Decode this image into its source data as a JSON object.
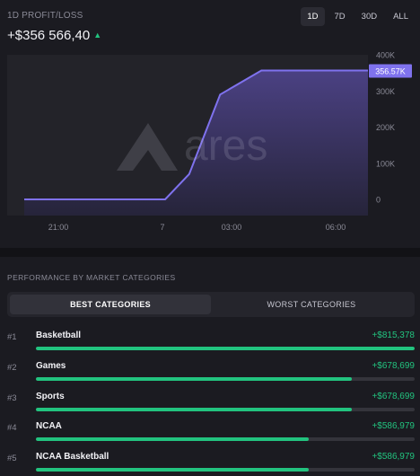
{
  "pnl": {
    "label": "1D PROFIT/LOSS",
    "value": "+$356 566,40",
    "trend_icon": "triangle-up-icon",
    "trend_glyph": "▲"
  },
  "range_tabs": [
    {
      "label": "1D",
      "active": true
    },
    {
      "label": "7D",
      "active": false
    },
    {
      "label": "30D",
      "active": false
    },
    {
      "label": "ALL",
      "active": false
    }
  ],
  "watermark": {
    "text": "ares"
  },
  "chart_data": {
    "type": "area",
    "x_ticks": [
      "21:00",
      "7",
      "03:00",
      "06:00"
    ],
    "y_ticks": [
      "0",
      "100K",
      "200K",
      "300K",
      "400K"
    ],
    "ylim": [
      0,
      400000
    ],
    "current_value_label": "356.57K",
    "x": [
      0,
      0.32,
      0.41,
      0.48,
      0.57,
      0.69,
      1.0
    ],
    "values": [
      0,
      0,
      0,
      70000,
      290000,
      356570,
      356570
    ],
    "line_color": "#7f72ee",
    "fill_color_top": "#4b4183",
    "fill_color_bottom": "#26243a",
    "grid": false
  },
  "performance": {
    "title": "PERFORMANCE BY MARKET CATEGORIES",
    "tabs": [
      {
        "label": "BEST CATEGORIES",
        "active": true
      },
      {
        "label": "WORST CATEGORIES",
        "active": false
      }
    ],
    "categories": [
      {
        "rank": "#1",
        "name": "Basketball",
        "amount": "+$815,378",
        "share": 1.0
      },
      {
        "rank": "#2",
        "name": "Games",
        "amount": "+$678,699",
        "share": 0.833
      },
      {
        "rank": "#3",
        "name": "Sports",
        "amount": "+$678,699",
        "share": 0.833
      },
      {
        "rank": "#4",
        "name": "NCAA",
        "amount": "+$586,979",
        "share": 0.72
      },
      {
        "rank": "#5",
        "name": "NCAA Basketball",
        "amount": "+$586,979",
        "share": 0.72
      }
    ],
    "accent_color": "#22c37f"
  }
}
